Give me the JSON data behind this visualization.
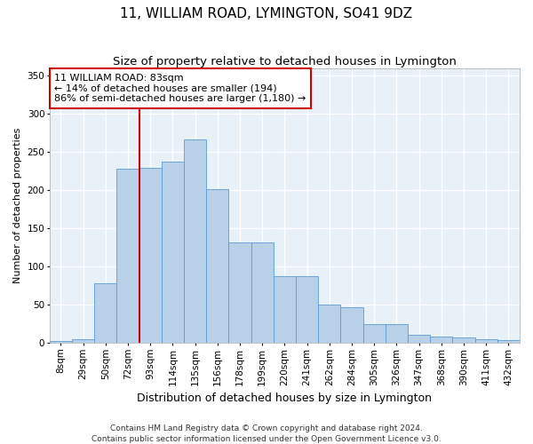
{
  "title": "11, WILLIAM ROAD, LYMINGTON, SO41 9DZ",
  "subtitle": "Size of property relative to detached houses in Lymington",
  "xlabel": "Distribution of detached houses by size in Lymington",
  "ylabel": "Number of detached properties",
  "bar_color": "#b8d0e8",
  "bar_edge_color": "#5b9bd5",
  "background_color": "#e8f0f8",
  "grid_color": "#ffffff",
  "categories": [
    "8sqm",
    "29sqm",
    "50sqm",
    "72sqm",
    "93sqm",
    "114sqm",
    "135sqm",
    "156sqm",
    "178sqm",
    "199sqm",
    "220sqm",
    "241sqm",
    "262sqm",
    "284sqm",
    "305sqm",
    "326sqm",
    "347sqm",
    "368sqm",
    "390sqm",
    "411sqm",
    "432sqm"
  ],
  "values": [
    2,
    5,
    78,
    228,
    229,
    237,
    267,
    201,
    131,
    131,
    87,
    87,
    50,
    46,
    25,
    25,
    11,
    8,
    7,
    5,
    3
  ],
  "ylim": [
    0,
    360
  ],
  "yticks": [
    0,
    50,
    100,
    150,
    200,
    250,
    300,
    350
  ],
  "vline_color": "#cc0000",
  "vline_position": 3.52,
  "annotation_text": "11 WILLIAM ROAD: 83sqm\n← 14% of detached houses are smaller (194)\n86% of semi-detached houses are larger (1,180) →",
  "annotation_box_color": "#cc0000",
  "footer_line1": "Contains HM Land Registry data © Crown copyright and database right 2024.",
  "footer_line2": "Contains public sector information licensed under the Open Government Licence v3.0.",
  "title_fontsize": 11,
  "subtitle_fontsize": 9.5,
  "xlabel_fontsize": 9,
  "ylabel_fontsize": 8,
  "tick_fontsize": 7.5,
  "annotation_fontsize": 8,
  "footer_fontsize": 6.5
}
